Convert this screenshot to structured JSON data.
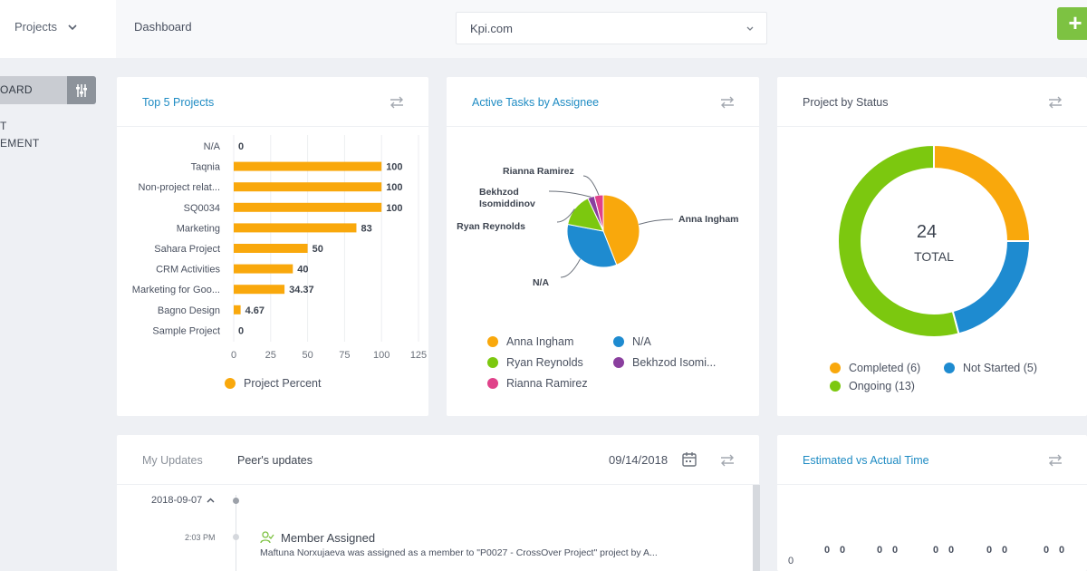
{
  "header": {
    "project_select": "Projects",
    "breadcrumb": "Dashboard",
    "site_select": "Kpi.com",
    "add_label": "+"
  },
  "sidebar": {
    "dashboard_label": "OARD",
    "items": [
      "T",
      "EMENT"
    ]
  },
  "cards": {
    "top5": {
      "title": "Top 5 Projects",
      "legend": "Project Percent"
    },
    "assignee": {
      "title": "Active Tasks by Assignee"
    },
    "status": {
      "title": "Project by Status",
      "total_value": "24",
      "total_label": "TOTAL"
    },
    "updates": {
      "tab_my": "My Updates",
      "tab_peer": "Peer's updates",
      "date": "09/14/2018"
    },
    "estimated": {
      "title": "Estimated vs Actual Time"
    }
  },
  "updates_feed": {
    "day": "2018-09-07",
    "entry_time": "2:03 PM",
    "entry_title": "Member Assigned",
    "entry_text": "Maftuna Norxujaeva was assigned as a member to \"P0027 - CrossOver Project\" project by A..."
  },
  "colors": {
    "orange": "#f9a80c",
    "blue": "#1e8bd0",
    "green": "#7cc80f",
    "purple": "#8a3f9e",
    "pink": "#e0428a",
    "accent": "#1e8bc3",
    "add_button": "#7dc242"
  },
  "chart_data": [
    {
      "type": "bar",
      "orientation": "horizontal",
      "title": "Top 5 Projects",
      "categories": [
        "N/A",
        "Taqnia",
        "Non-project relat...",
        "SQ0034",
        "Marketing",
        "Sahara Project",
        "CRM Activities",
        "Marketing for Goo...",
        "Bagno Design",
        "Sample Project"
      ],
      "values": [
        0,
        100,
        100,
        100,
        83,
        50,
        40,
        34.37,
        4.67,
        0
      ],
      "value_labels": [
        "0",
        "100",
        "100",
        "100",
        "83",
        "50",
        "40",
        "34.37",
        "4.67",
        "0"
      ],
      "series": [
        {
          "name": "Project Percent"
        }
      ],
      "xlim": [
        0,
        125
      ],
      "xticks": [
        "0",
        "25",
        "50",
        "75",
        "100",
        "125"
      ],
      "grid": true,
      "legend": "bottom"
    },
    {
      "type": "pie",
      "title": "Active Tasks by Assignee",
      "slices": [
        {
          "label": "Anna Ingham",
          "value": 44,
          "color": "#f9a80c"
        },
        {
          "label": "N/A",
          "value": 34,
          "color": "#1e8bd0"
        },
        {
          "label": "Ryan Reynolds",
          "value": 15,
          "color": "#7cc80f"
        },
        {
          "label": "Bekhzod Isomiddinov",
          "value": 3,
          "color": "#8a3f9e"
        },
        {
          "label": "Rianna Ramirez",
          "value": 4,
          "color": "#e0428a"
        }
      ],
      "callout_labels": [
        "Anna Ingham",
        "N/A",
        "Ryan Reynolds",
        "Bekhzod",
        "Isomiddinov",
        "Rianna Ramirez"
      ],
      "legend_labels": [
        "Anna Ingham",
        "N/A",
        "Ryan Reynolds",
        "Bekhzod Isomi...",
        "Rianna Ramirez"
      ],
      "legend": "bottom"
    },
    {
      "type": "pie",
      "style": "donut",
      "title": "Project by Status",
      "total": 24,
      "slices": [
        {
          "label": "Completed (6)",
          "value": 6,
          "color": "#f9a80c"
        },
        {
          "label": "Not Started (5)",
          "value": 5,
          "color": "#1e8bd0"
        },
        {
          "label": "Ongoing (13)",
          "value": 13,
          "color": "#7cc80f"
        }
      ],
      "legend": "bottom"
    },
    {
      "type": "bar",
      "title": "Estimated vs Actual Time",
      "values": [
        0,
        0,
        0,
        0,
        0,
        0,
        0,
        0,
        0,
        0,
        0,
        0
      ],
      "value_labels": [
        "0",
        "0",
        "0",
        "0",
        "0",
        "0",
        "0",
        "0",
        "0",
        "0",
        "0",
        "0"
      ],
      "yticks": [
        "0"
      ]
    }
  ]
}
